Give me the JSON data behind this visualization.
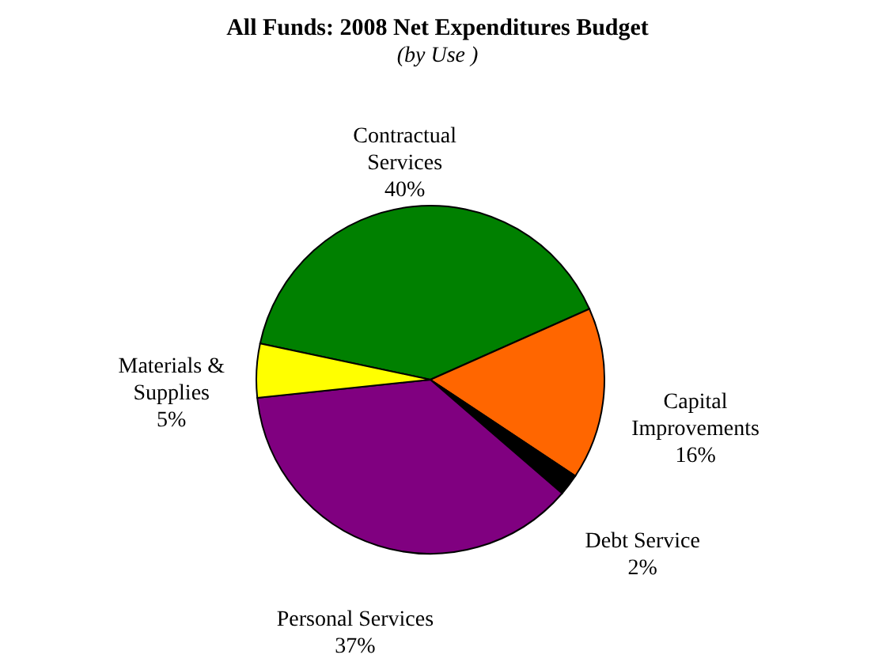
{
  "chart_data": {
    "type": "pie",
    "title": "All Funds:  2008 Net Expenditures Budget",
    "subtitle": "(by Use )",
    "categories": [
      "Contractual Services",
      "Capital Improvements",
      "Debt Service",
      "Personal Services",
      "Materials & Supplies"
    ],
    "values": [
      40,
      16,
      2,
      37,
      5
    ],
    "value_labels": [
      "40%",
      "16%",
      "2%",
      "37%",
      "5%"
    ],
    "colors": [
      "#008000",
      "#ff6600",
      "#000000",
      "#800080",
      "#ffff00"
    ],
    "legend": false
  }
}
